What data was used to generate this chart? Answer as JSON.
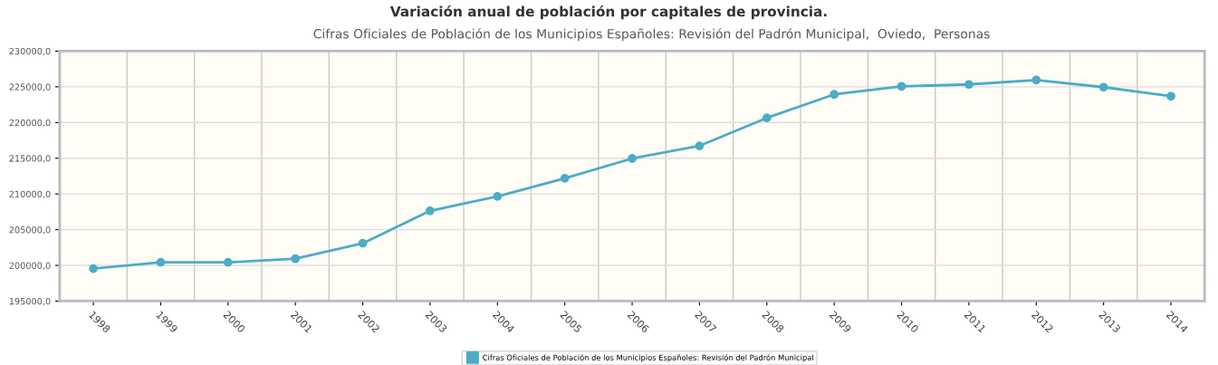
{
  "chart_data": {
    "type": "line",
    "title": "Variación anual de población por capitales de provincia.",
    "subtitle": "Cifras Oficiales de Población de los Municipios Españoles: Revisión del Padrón Municipal,  Oviedo,  Personas",
    "categories": [
      "1998",
      "1999",
      "2000",
      "2001",
      "2002",
      "2003",
      "2004",
      "2005",
      "2006",
      "2007",
      "2008",
      "2009",
      "2010",
      "2011",
      "2012",
      "2013",
      "2014"
    ],
    "series": [
      {
        "name": "Cifras Oficiales de Población de los Municipios Españoles: Revisión del Padrón Municipal",
        "color": "#4bacc6",
        "values": [
          199550,
          200430,
          200430,
          200930,
          203090,
          207640,
          209660,
          212190,
          214970,
          216730,
          220650,
          223940,
          225070,
          225330,
          225960,
          224950,
          223680
        ]
      }
    ],
    "ylim": [
      195000,
      230000
    ],
    "yticks": [
      {
        "value": 195000,
        "label": "195000,0"
      },
      {
        "value": 200000,
        "label": "200000,0"
      },
      {
        "value": 205000,
        "label": "205000,0"
      },
      {
        "value": 210000,
        "label": "210000,0"
      },
      {
        "value": 215000,
        "label": "215000,0"
      },
      {
        "value": 220000,
        "label": "220000,0"
      },
      {
        "value": 225000,
        "label": "225000,0"
      },
      {
        "value": 230000,
        "label": "230000,0"
      }
    ],
    "grid": true,
    "legend": "bottom",
    "marker": "circle",
    "line_style": "solid"
  }
}
